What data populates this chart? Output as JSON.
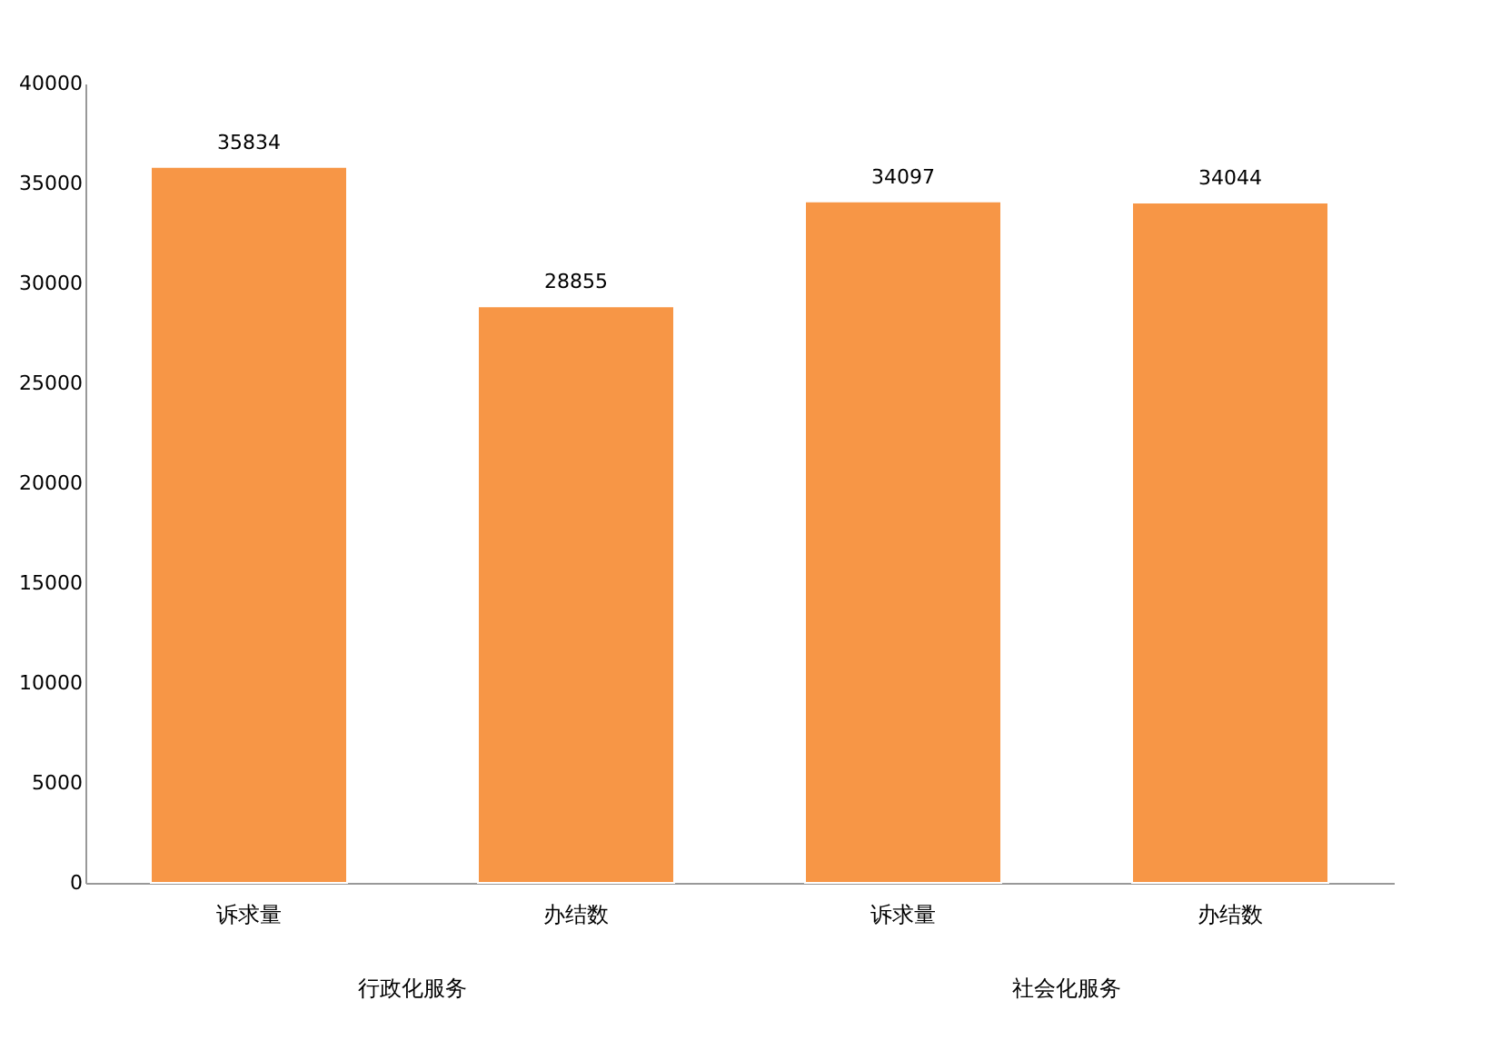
{
  "chart_data": {
    "type": "bar",
    "categories": [
      "诉求量",
      "办结数",
      "诉求量",
      "办结数"
    ],
    "values": [
      35834,
      28855,
      34097,
      34044
    ],
    "color": "#f79646",
    "ylim": [
      0,
      40000
    ],
    "yticks": [
      0,
      5000,
      10000,
      15000,
      20000,
      25000,
      30000,
      35000,
      40000
    ],
    "grid": false,
    "data_labels": true,
    "annotations": [
      "行政化服务",
      "社会化服务"
    ]
  }
}
